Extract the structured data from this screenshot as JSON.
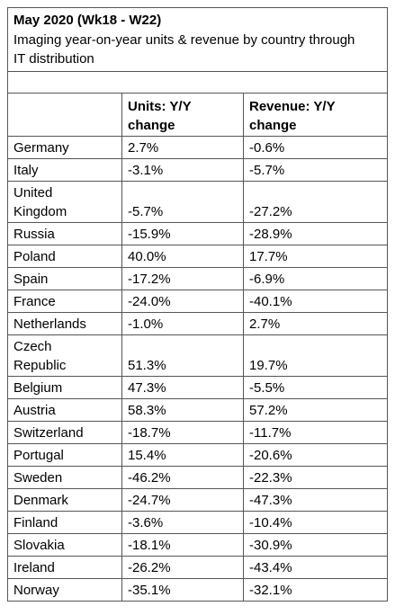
{
  "header": {
    "title": "May 2020 (Wk18 - W22)",
    "subtitle": "Imaging year-on-year units & revenue by country through IT distribution"
  },
  "table": {
    "columns": [
      "Units: Y/Y change",
      "Revenue: Y/Y change"
    ],
    "rows": [
      [
        "Germany",
        "2.7%",
        "-0.6%"
      ],
      [
        "Italy",
        "-3.1%",
        "-5.7%"
      ],
      [
        "United Kingdom",
        "-5.7%",
        "-27.2%"
      ],
      [
        "Russia",
        "-15.9%",
        "-28.9%"
      ],
      [
        "Poland",
        "40.0%",
        "17.7%"
      ],
      [
        "Spain",
        "-17.2%",
        "-6.9%"
      ],
      [
        "France",
        "-24.0%",
        "-40.1%"
      ],
      [
        "Netherlands",
        "-1.0%",
        "2.7%"
      ],
      [
        "Czech Republic",
        "51.3%",
        "19.7%"
      ],
      [
        "Belgium",
        "47.3%",
        "-5.5%"
      ],
      [
        "Austria",
        "58.3%",
        "57.2%"
      ],
      [
        "Switzerland",
        "-18.7%",
        "-11.7%"
      ],
      [
        "Portugal",
        "15.4%",
        "-20.6%"
      ],
      [
        "Sweden",
        "-46.2%",
        "-22.3%"
      ],
      [
        "Denmark",
        "-24.7%",
        "-47.3%"
      ],
      [
        "Finland",
        "-3.6%",
        "-10.4%"
      ],
      [
        "Slovakia",
        "-18.1%",
        "-30.9%"
      ],
      [
        "Ireland",
        "-26.2%",
        "-43.4%"
      ],
      [
        "Norway",
        "-35.1%",
        "-32.1%"
      ]
    ]
  }
}
